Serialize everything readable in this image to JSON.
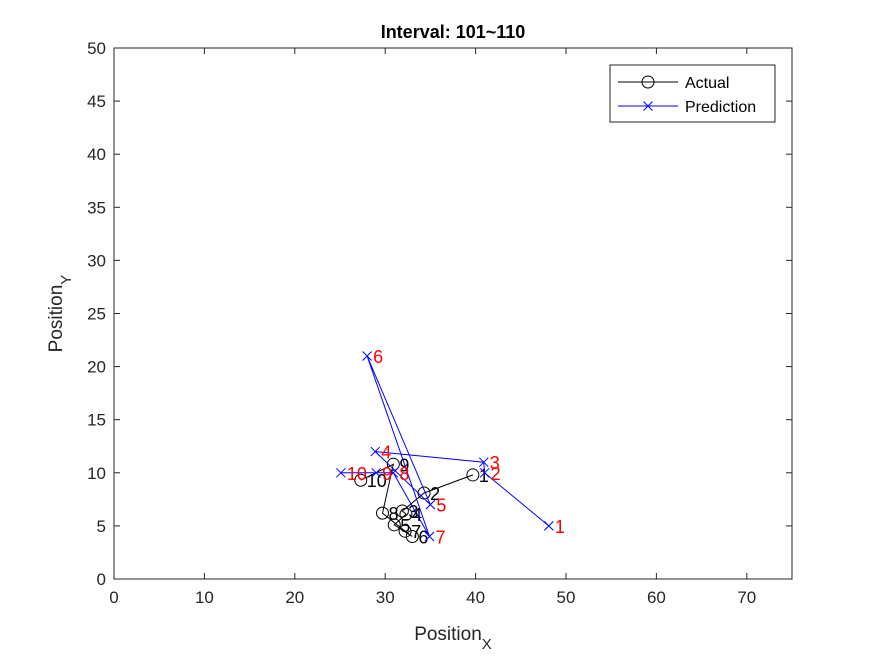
{
  "chart_data": {
    "type": "line",
    "title": "Interval: 101~110",
    "xlabel": "Position",
    "xlabel_sub": "X",
    "ylabel": "Position",
    "ylabel_sub": "Y",
    "xlim": [
      0,
      75
    ],
    "ylim": [
      0,
      50
    ],
    "xticks": [
      0,
      10,
      20,
      30,
      40,
      50,
      60,
      70
    ],
    "yticks": [
      0,
      5,
      10,
      15,
      20,
      25,
      30,
      35,
      40,
      45,
      50
    ],
    "grid": false,
    "legend_location": "top-right",
    "series": [
      {
        "name": "Actual",
        "marker": "circle",
        "color": "#000000",
        "label_color": "#000000",
        "labels": [
          "1",
          "2",
          "3",
          "4",
          "5",
          "6",
          "7",
          "8",
          "9",
          "10"
        ],
        "x": [
          39.7,
          34.3,
          31.9,
          32.3,
          31.0,
          33.0,
          32.2,
          29.7,
          30.9,
          27.3
        ],
        "y": [
          9.8,
          8.1,
          6.4,
          6.1,
          5.1,
          4.0,
          4.5,
          6.2,
          10.8,
          9.3
        ]
      },
      {
        "name": "Prediction",
        "marker": "x",
        "color": "#0000ff",
        "label_color": "#ff0000",
        "labels": [
          "1",
          "2",
          "3",
          "4",
          "5",
          "6",
          "7",
          "8",
          "9",
          "10"
        ],
        "x": [
          48.1,
          41.0,
          40.9,
          28.9,
          35.0,
          28.0,
          34.9,
          30.9,
          29.0,
          25.1
        ],
        "y": [
          5.0,
          10.0,
          11.0,
          12.0,
          7.0,
          21.0,
          4.0,
          10.0,
          10.0,
          10.0
        ]
      }
    ]
  }
}
